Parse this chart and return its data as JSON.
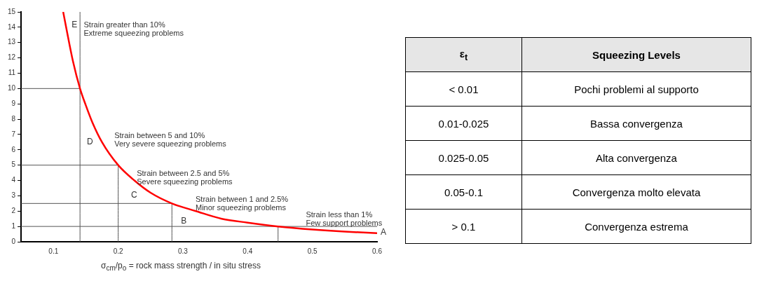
{
  "chart_data": [
    {
      "type": "line",
      "xlabel": "σ$_{cm}$/p$_{o}$ = rock mass strength / in situ stress",
      "xlim": [
        0.05,
        0.6
      ],
      "xticks": [
        0.1,
        0.2,
        0.3,
        0.4,
        0.5,
        0.6
      ],
      "ylim": [
        0,
        15
      ],
      "yticks": [
        0,
        1,
        2,
        3,
        4,
        5,
        6,
        7,
        8,
        9,
        10,
        11,
        12,
        13,
        14,
        15
      ],
      "grid": false,
      "legend": false,
      "marker": "none",
      "line_style": "solid",
      "series": [
        {
          "color": "#ff0000",
          "x": [
            0.115,
            0.12,
            0.13,
            0.141,
            0.15,
            0.16,
            0.175,
            0.2,
            0.225,
            0.25,
            0.283,
            0.32,
            0.36,
            0.4,
            0.447,
            0.5,
            0.55,
            0.6
          ],
          "values": [
            15,
            13.9,
            11.8,
            10,
            8.9,
            7.8,
            6.5,
            5,
            4,
            3.2,
            2.5,
            2,
            1.5,
            1.25,
            1,
            0.8,
            0.66,
            0.56
          ]
        },
        {
          "color": "#555555",
          "x": [
            0.141,
            0.141
          ],
          "values": [
            0,
            15
          ]
        },
        {
          "color": "#555555",
          "x": [
            0.05,
            0.141
          ],
          "values": [
            10,
            10
          ]
        },
        {
          "color": "#555555",
          "x": [
            0.05,
            0.2,
            0.2
          ],
          "values": [
            5,
            5,
            0
          ]
        },
        {
          "color": "#555555",
          "x": [
            0.05,
            0.283,
            0.283
          ],
          "values": [
            2.5,
            2.5,
            0
          ]
        },
        {
          "color": "#555555",
          "x": [
            0.05,
            0.6
          ],
          "values": [
            1,
            1
          ]
        },
        {
          "color": "#555555",
          "x": [
            0.447,
            0.447
          ],
          "values": [
            0,
            1
          ]
        }
      ],
      "annotations": [
        "E",
        "Strain greater than 10%\nExtreme squeezing problems",
        "D",
        "Strain between 5 and 10%\nVery severe squeezing problems",
        "C",
        "Strain between 2.5 and 5%\nSevere squeezing problems",
        "B",
        "Strain between 1 and 2.5%\nMinor squeezing problems",
        "Strain less than 1%\nFew support problems",
        "A"
      ]
    },
    {
      "type": "other",
      "annotations": [
        "ε$_{t}$",
        "Squeezing Levels",
        "< 0.01",
        "Pochi problemi al supporto",
        "0.01-0.025",
        "Bassa convergenza",
        "0.025-0.05",
        "Alta convergenza",
        "0.05-0.1",
        "Convergenza molto elevata",
        "> 0.1",
        "Convergenza estrema"
      ]
    }
  ]
}
